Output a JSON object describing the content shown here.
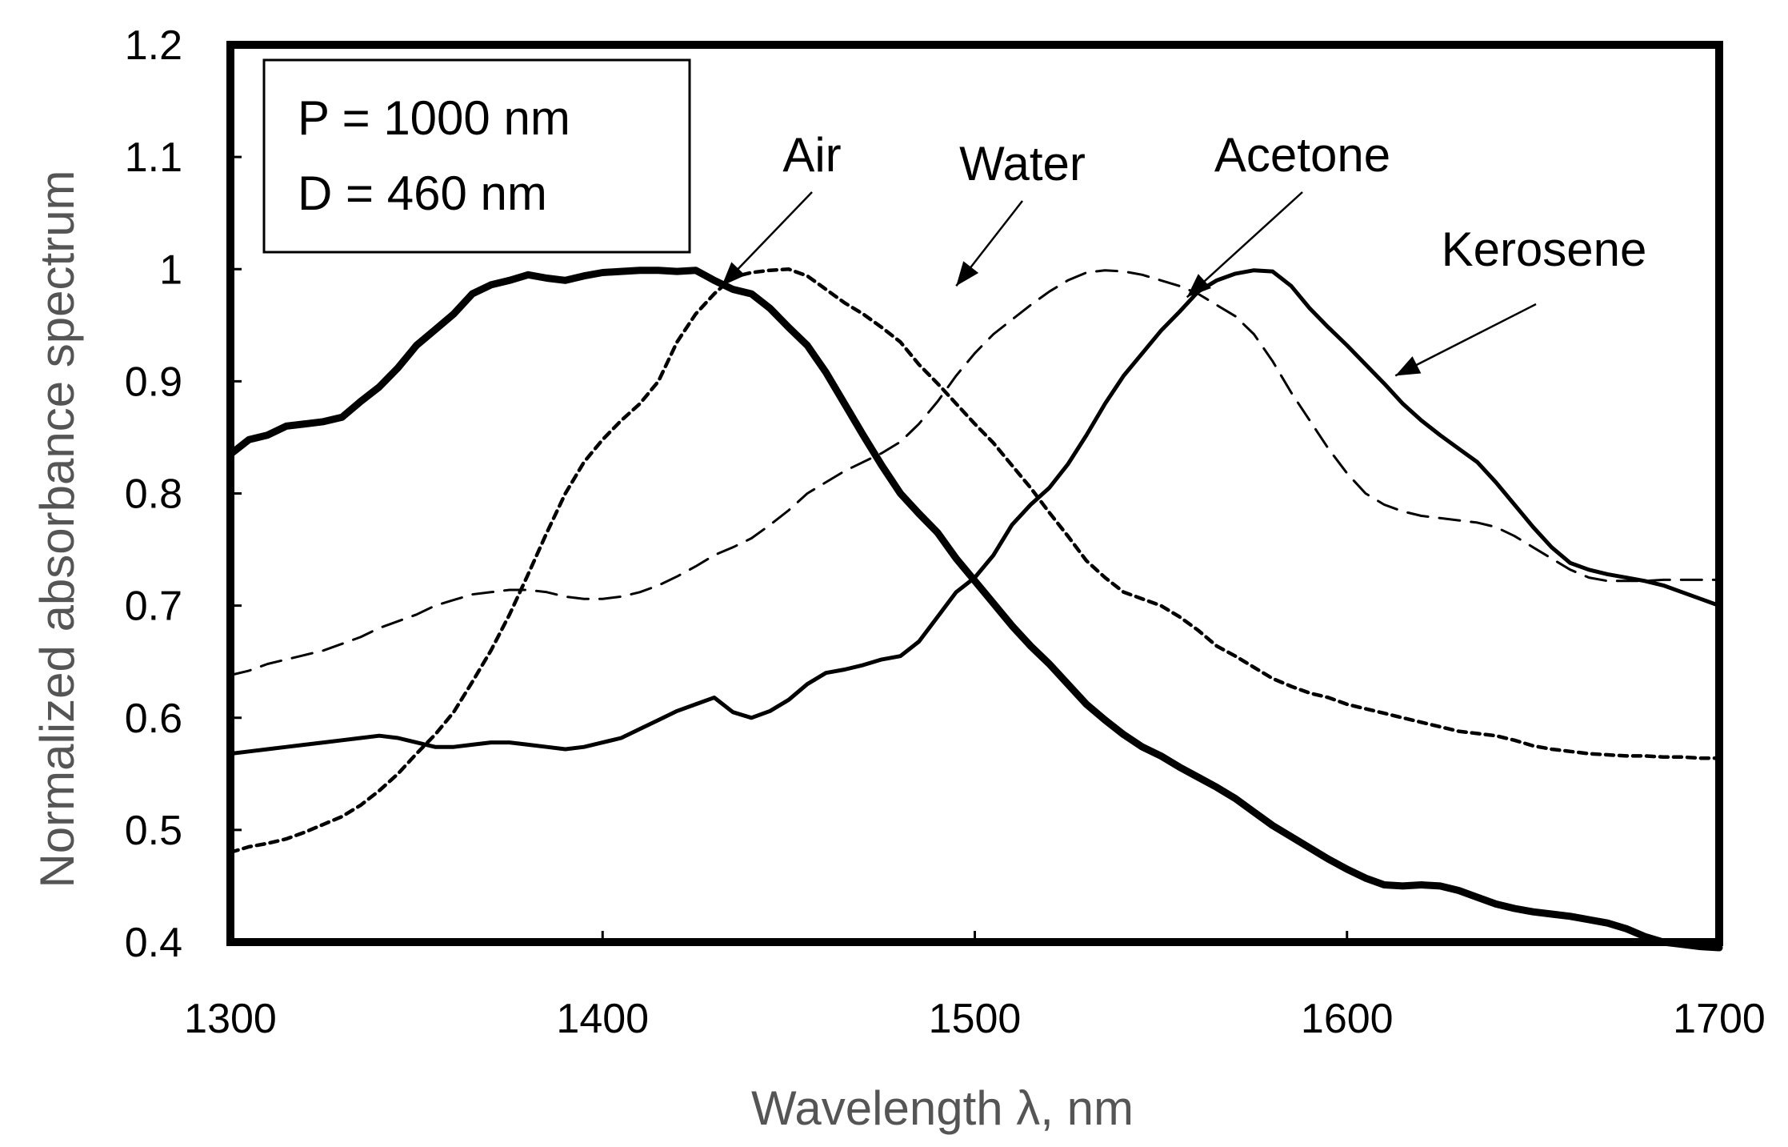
{
  "chart_data": {
    "type": "line",
    "title": "",
    "xlabel": "Wavelength λ, nm",
    "ylabel": "Normalized absorbance spectrum",
    "xlim": [
      1300,
      1700
    ],
    "ylim": [
      0.4,
      1.2
    ],
    "x_ticks": [
      "1300",
      "1400",
      "1500",
      "1600",
      "1700"
    ],
    "y_ticks": [
      "0.4",
      "0.5",
      "0.6",
      "0.7",
      "0.8",
      "0.9",
      "1",
      "1.1",
      "1.2"
    ],
    "grid": false,
    "parameters": [
      "P = 1000 nm",
      "D = 460 nm"
    ],
    "series": [
      {
        "name": "Air",
        "style": "solid-thick",
        "x": [
          1300,
          1305,
          1310,
          1315,
          1320,
          1325,
          1330,
          1335,
          1340,
          1345,
          1350,
          1355,
          1360,
          1365,
          1370,
          1375,
          1380,
          1385,
          1390,
          1395,
          1400,
          1405,
          1410,
          1415,
          1420,
          1425,
          1430,
          1435,
          1440,
          1445,
          1450,
          1455,
          1460,
          1465,
          1470,
          1475,
          1480,
          1485,
          1490,
          1495,
          1500,
          1505,
          1510,
          1515,
          1520,
          1525,
          1530,
          1535,
          1540,
          1545,
          1550,
          1555,
          1560,
          1565,
          1570,
          1575,
          1580,
          1585,
          1590,
          1595,
          1600,
          1605,
          1610,
          1615,
          1620,
          1625,
          1630,
          1635,
          1640,
          1645,
          1650,
          1655,
          1660,
          1665,
          1670,
          1675,
          1680,
          1685,
          1690,
          1695,
          1700
        ],
        "values": [
          0.835,
          0.848,
          0.852,
          0.86,
          0.862,
          0.864,
          0.868,
          0.882,
          0.895,
          0.912,
          0.932,
          0.946,
          0.96,
          0.978,
          0.986,
          0.99,
          0.995,
          0.992,
          0.99,
          0.994,
          0.997,
          0.998,
          0.999,
          0.999,
          0.998,
          0.999,
          0.99,
          0.982,
          0.978,
          0.965,
          0.948,
          0.932,
          0.908,
          0.88,
          0.852,
          0.825,
          0.8,
          0.782,
          0.765,
          0.742,
          0.722,
          0.702,
          0.682,
          0.664,
          0.648,
          0.63,
          0.612,
          0.598,
          0.585,
          0.574,
          0.566,
          0.556,
          0.547,
          0.538,
          0.528,
          0.516,
          0.504,
          0.494,
          0.484,
          0.474,
          0.465,
          0.457,
          0.451,
          0.45,
          0.451,
          0.45,
          0.446,
          0.44,
          0.434,
          0.43,
          0.427,
          0.425,
          0.423,
          0.42,
          0.417,
          0.412,
          0.405,
          0.4,
          0.398,
          0.396,
          0.395
        ]
      },
      {
        "name": "Water",
        "style": "dotted",
        "x": [
          1300,
          1305,
          1310,
          1315,
          1320,
          1325,
          1330,
          1335,
          1340,
          1345,
          1350,
          1355,
          1360,
          1365,
          1370,
          1375,
          1380,
          1385,
          1390,
          1395,
          1400,
          1405,
          1410,
          1415,
          1420,
          1425,
          1430,
          1435,
          1440,
          1445,
          1450,
          1455,
          1460,
          1465,
          1470,
          1475,
          1480,
          1485,
          1490,
          1495,
          1500,
          1505,
          1510,
          1515,
          1520,
          1525,
          1530,
          1535,
          1540,
          1545,
          1550,
          1555,
          1560,
          1565,
          1570,
          1575,
          1580,
          1585,
          1590,
          1595,
          1600,
          1605,
          1610,
          1615,
          1620,
          1625,
          1630,
          1635,
          1640,
          1645,
          1650,
          1655,
          1660,
          1665,
          1670,
          1675,
          1680,
          1685,
          1690,
          1695,
          1700
        ],
        "values": [
          0.48,
          0.485,
          0.488,
          0.492,
          0.498,
          0.505,
          0.512,
          0.522,
          0.535,
          0.55,
          0.568,
          0.585,
          0.605,
          0.632,
          0.66,
          0.692,
          0.728,
          0.765,
          0.8,
          0.828,
          0.848,
          0.865,
          0.88,
          0.9,
          0.935,
          0.96,
          0.978,
          0.993,
          0.997,
          0.999,
          1.0,
          0.994,
          0.982,
          0.97,
          0.96,
          0.948,
          0.935,
          0.915,
          0.898,
          0.88,
          0.862,
          0.845,
          0.825,
          0.805,
          0.783,
          0.762,
          0.74,
          0.725,
          0.712,
          0.706,
          0.7,
          0.69,
          0.678,
          0.664,
          0.655,
          0.645,
          0.635,
          0.628,
          0.622,
          0.618,
          0.612,
          0.608,
          0.604,
          0.6,
          0.596,
          0.592,
          0.588,
          0.586,
          0.584,
          0.58,
          0.575,
          0.572,
          0.57,
          0.568,
          0.567,
          0.566,
          0.566,
          0.565,
          0.565,
          0.564,
          0.564
        ]
      },
      {
        "name": "Acetone",
        "style": "dashed",
        "x": [
          1300,
          1305,
          1310,
          1315,
          1320,
          1325,
          1330,
          1335,
          1340,
          1345,
          1350,
          1355,
          1360,
          1365,
          1370,
          1375,
          1380,
          1385,
          1390,
          1395,
          1400,
          1405,
          1410,
          1415,
          1420,
          1425,
          1430,
          1435,
          1440,
          1445,
          1450,
          1455,
          1460,
          1465,
          1470,
          1475,
          1480,
          1485,
          1490,
          1495,
          1500,
          1505,
          1510,
          1515,
          1520,
          1525,
          1530,
          1535,
          1540,
          1545,
          1550,
          1555,
          1560,
          1565,
          1570,
          1575,
          1580,
          1585,
          1590,
          1595,
          1600,
          1605,
          1610,
          1615,
          1620,
          1625,
          1630,
          1635,
          1640,
          1645,
          1650,
          1655,
          1660,
          1665,
          1670,
          1675,
          1680,
          1685,
          1690,
          1695,
          1700
        ],
        "values": [
          0.638,
          0.642,
          0.648,
          0.652,
          0.656,
          0.66,
          0.666,
          0.672,
          0.68,
          0.686,
          0.692,
          0.7,
          0.705,
          0.71,
          0.712,
          0.714,
          0.714,
          0.712,
          0.708,
          0.706,
          0.706,
          0.708,
          0.712,
          0.718,
          0.726,
          0.735,
          0.745,
          0.752,
          0.76,
          0.772,
          0.785,
          0.8,
          0.81,
          0.82,
          0.828,
          0.836,
          0.846,
          0.862,
          0.882,
          0.905,
          0.925,
          0.942,
          0.955,
          0.968,
          0.98,
          0.99,
          0.997,
          0.999,
          0.998,
          0.995,
          0.99,
          0.985,
          0.978,
          0.968,
          0.958,
          0.942,
          0.918,
          0.89,
          0.865,
          0.84,
          0.818,
          0.8,
          0.79,
          0.784,
          0.78,
          0.778,
          0.776,
          0.774,
          0.77,
          0.762,
          0.752,
          0.742,
          0.732,
          0.725,
          0.722,
          0.722,
          0.722,
          0.723,
          0.723,
          0.723,
          0.723
        ]
      },
      {
        "name": "Kerosene",
        "style": "solid",
        "x": [
          1300,
          1305,
          1310,
          1315,
          1320,
          1325,
          1330,
          1335,
          1340,
          1345,
          1350,
          1355,
          1360,
          1365,
          1370,
          1375,
          1380,
          1385,
          1390,
          1395,
          1400,
          1405,
          1410,
          1415,
          1420,
          1425,
          1430,
          1435,
          1440,
          1445,
          1450,
          1455,
          1460,
          1465,
          1470,
          1475,
          1480,
          1485,
          1490,
          1495,
          1500,
          1505,
          1510,
          1515,
          1520,
          1525,
          1530,
          1535,
          1540,
          1545,
          1550,
          1555,
          1560,
          1565,
          1570,
          1575,
          1580,
          1585,
          1590,
          1595,
          1600,
          1605,
          1610,
          1615,
          1620,
          1625,
          1630,
          1635,
          1640,
          1645,
          1650,
          1655,
          1660,
          1665,
          1670,
          1675,
          1680,
          1685,
          1690,
          1695,
          1700
        ],
        "values": [
          0.568,
          0.57,
          0.572,
          0.574,
          0.576,
          0.578,
          0.58,
          0.582,
          0.584,
          0.582,
          0.578,
          0.574,
          0.574,
          0.576,
          0.578,
          0.578,
          0.576,
          0.574,
          0.572,
          0.574,
          0.578,
          0.582,
          0.59,
          0.598,
          0.606,
          0.612,
          0.618,
          0.605,
          0.6,
          0.606,
          0.616,
          0.63,
          0.64,
          0.643,
          0.647,
          0.652,
          0.655,
          0.668,
          0.69,
          0.712,
          0.725,
          0.745,
          0.772,
          0.79,
          0.805,
          0.826,
          0.852,
          0.88,
          0.905,
          0.925,
          0.945,
          0.962,
          0.98,
          0.99,
          0.996,
          0.999,
          0.998,
          0.985,
          0.965,
          0.948,
          0.932,
          0.915,
          0.898,
          0.88,
          0.865,
          0.852,
          0.84,
          0.828,
          0.81,
          0.79,
          0.77,
          0.752,
          0.738,
          0.732,
          0.728,
          0.725,
          0.722,
          0.718,
          0.712,
          0.706,
          0.7
        ]
      }
    ],
    "annotations": [
      {
        "label": "Air",
        "target": [
          1432,
          0.985
        ]
      },
      {
        "label": "Water",
        "target": [
          1495,
          0.985
        ]
      },
      {
        "label": "Acetone",
        "target": [
          1557,
          0.975
        ]
      },
      {
        "label": "Kerosene",
        "target": [
          1613,
          0.905
        ]
      }
    ]
  }
}
